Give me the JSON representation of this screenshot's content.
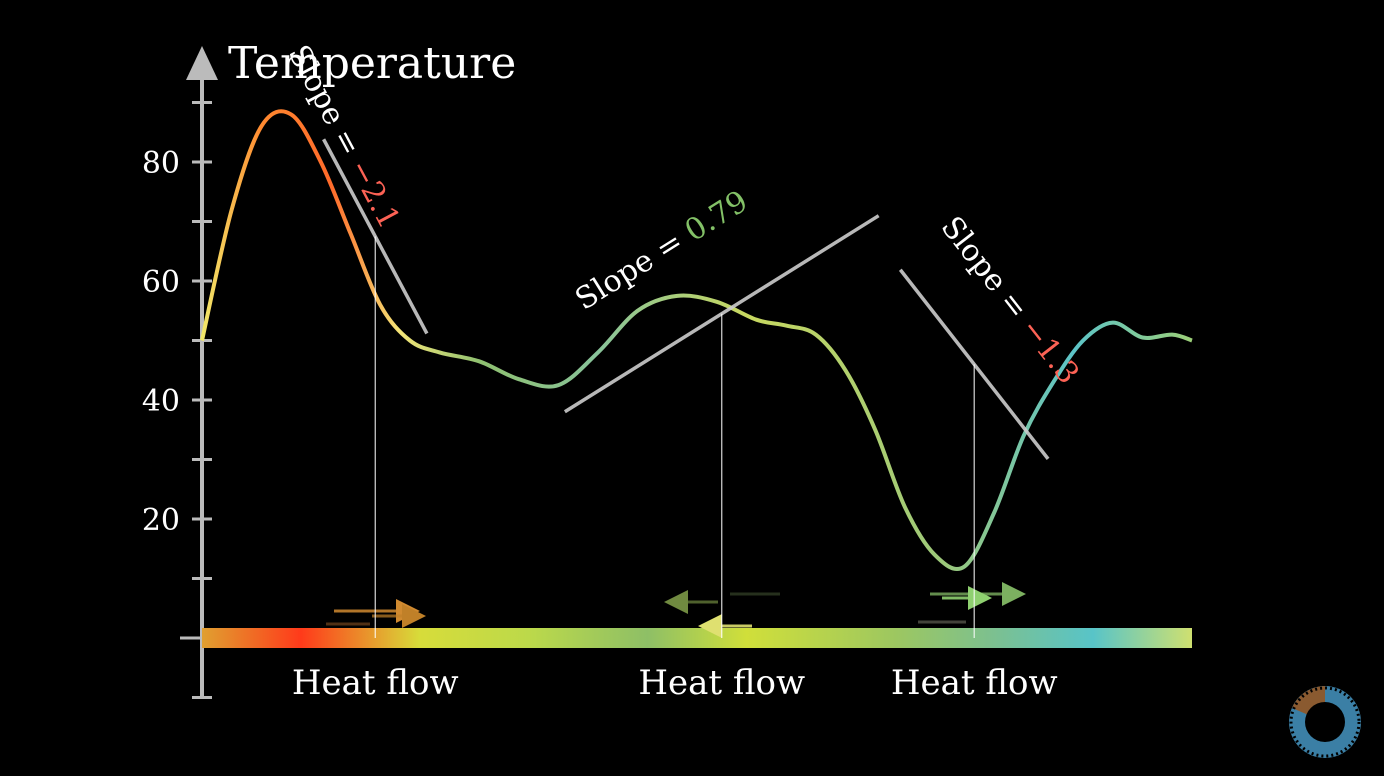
{
  "colors": {
    "background": "#000000",
    "axis": "#bbbbbb",
    "negative_slope": "#fc6255",
    "positive_slope": "#83c167",
    "tangent": "#cccccc",
    "bar_gradient": [
      "#e0a030",
      "#ff3a1a",
      "#d7dc3a",
      "#bcd94a",
      "#8ebf66",
      "#d0df3a",
      "#9dc760",
      "#7cc090",
      "#58c4c8",
      "#cfe070"
    ]
  },
  "chart_data": {
    "type": "line",
    "title": "",
    "xlabel": "",
    "ylabel": "Temperature",
    "ylim": [
      -10,
      92
    ],
    "xlim": [
      0,
      10
    ],
    "yticks": [
      20,
      40,
      60,
      80
    ],
    "ytick_labels": [
      "20",
      "40",
      "60",
      "80"
    ],
    "minor_yticks": [
      10,
      30,
      50,
      70,
      90
    ],
    "grid": false,
    "series": [
      {
        "x": [
          0,
          0.3,
          0.6,
          0.9,
          1.2,
          1.5,
          1.8,
          2.1,
          2.4,
          2.8,
          3.2,
          3.6,
          4.0,
          4.4,
          4.8,
          5.2,
          5.6,
          5.9,
          6.2,
          6.5,
          6.8,
          7.1,
          7.4,
          7.7,
          8.0,
          8.3,
          8.6,
          8.9,
          9.2,
          9.5,
          9.8,
          10.0
        ],
        "y": [
          50,
          72,
          86,
          88,
          80,
          68,
          56,
          50,
          48,
          46.5,
          43.5,
          42.5,
          48,
          55,
          57.5,
          56.5,
          53.5,
          52.5,
          51,
          45,
          35,
          22,
          14,
          12,
          21,
          34,
          43,
          50,
          53,
          50.5,
          51,
          50
        ]
      }
    ],
    "heat_bar": {
      "y": 0
    },
    "tangents": [
      {
        "x": 1.75,
        "y": 67.5,
        "slope_label": "Slope = ",
        "slope_value": "−2.1",
        "value_color": "negative"
      },
      {
        "x": 5.25,
        "y": 54.5,
        "slope_label": "Slope = ",
        "slope_value": "0.79",
        "value_color": "positive"
      },
      {
        "x": 7.8,
        "y": 46,
        "slope_label": "Slope = ",
        "slope_value": "−1.3",
        "value_color": "negative"
      }
    ],
    "annotations": [
      {
        "text": "Heat flow",
        "x": 1.75
      },
      {
        "text": "Heat flow",
        "x": 5.25
      },
      {
        "text": "Heat flow",
        "x": 7.8
      }
    ]
  }
}
